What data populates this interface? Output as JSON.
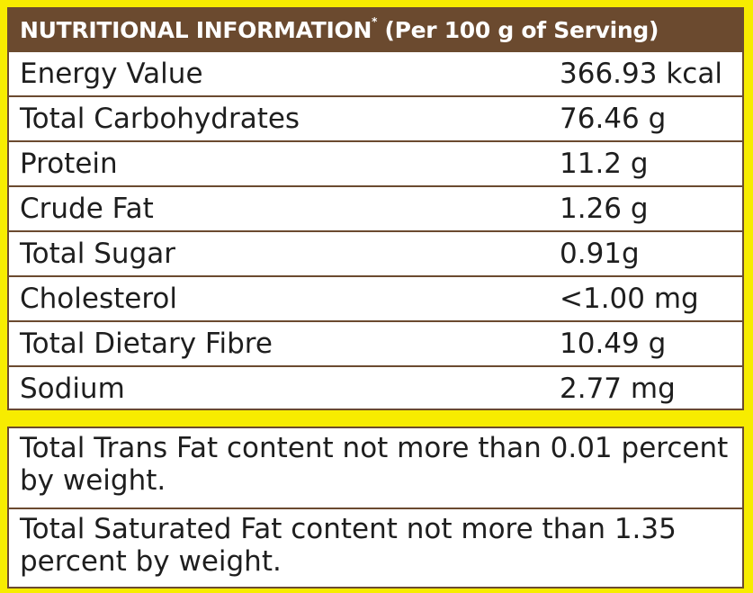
{
  "header": {
    "title": "NUTRITIONAL INFORMATION",
    "asterisk": "*",
    "subtitle": "(Per 100 g of Serving)"
  },
  "nutrients": [
    {
      "name": "Energy Value",
      "value": "366.93 kcal"
    },
    {
      "name": "Total Carbohydrates",
      "value": "76.46 g"
    },
    {
      "name": "Protein",
      "value": "11.2 g"
    },
    {
      "name": "Crude Fat",
      "value": "1.26 g"
    },
    {
      "name": "Total Sugar",
      "value": "0.91g"
    },
    {
      "name": "Cholesterol",
      "value": "<1.00 mg"
    },
    {
      "name": "Total Dietary Fibre",
      "value": "10.49 g"
    },
    {
      "name": "Sodium",
      "value": "2.77 mg"
    }
  ],
  "notes": [
    "Total Trans Fat content not more than 0.01 percent by weight.",
    "Total Saturated Fat content not more than 1.35 percent by weight."
  ],
  "colors": {
    "background": "#f7ec00",
    "header_fill": "#6b4a2f",
    "border": "#6b4a2f"
  }
}
